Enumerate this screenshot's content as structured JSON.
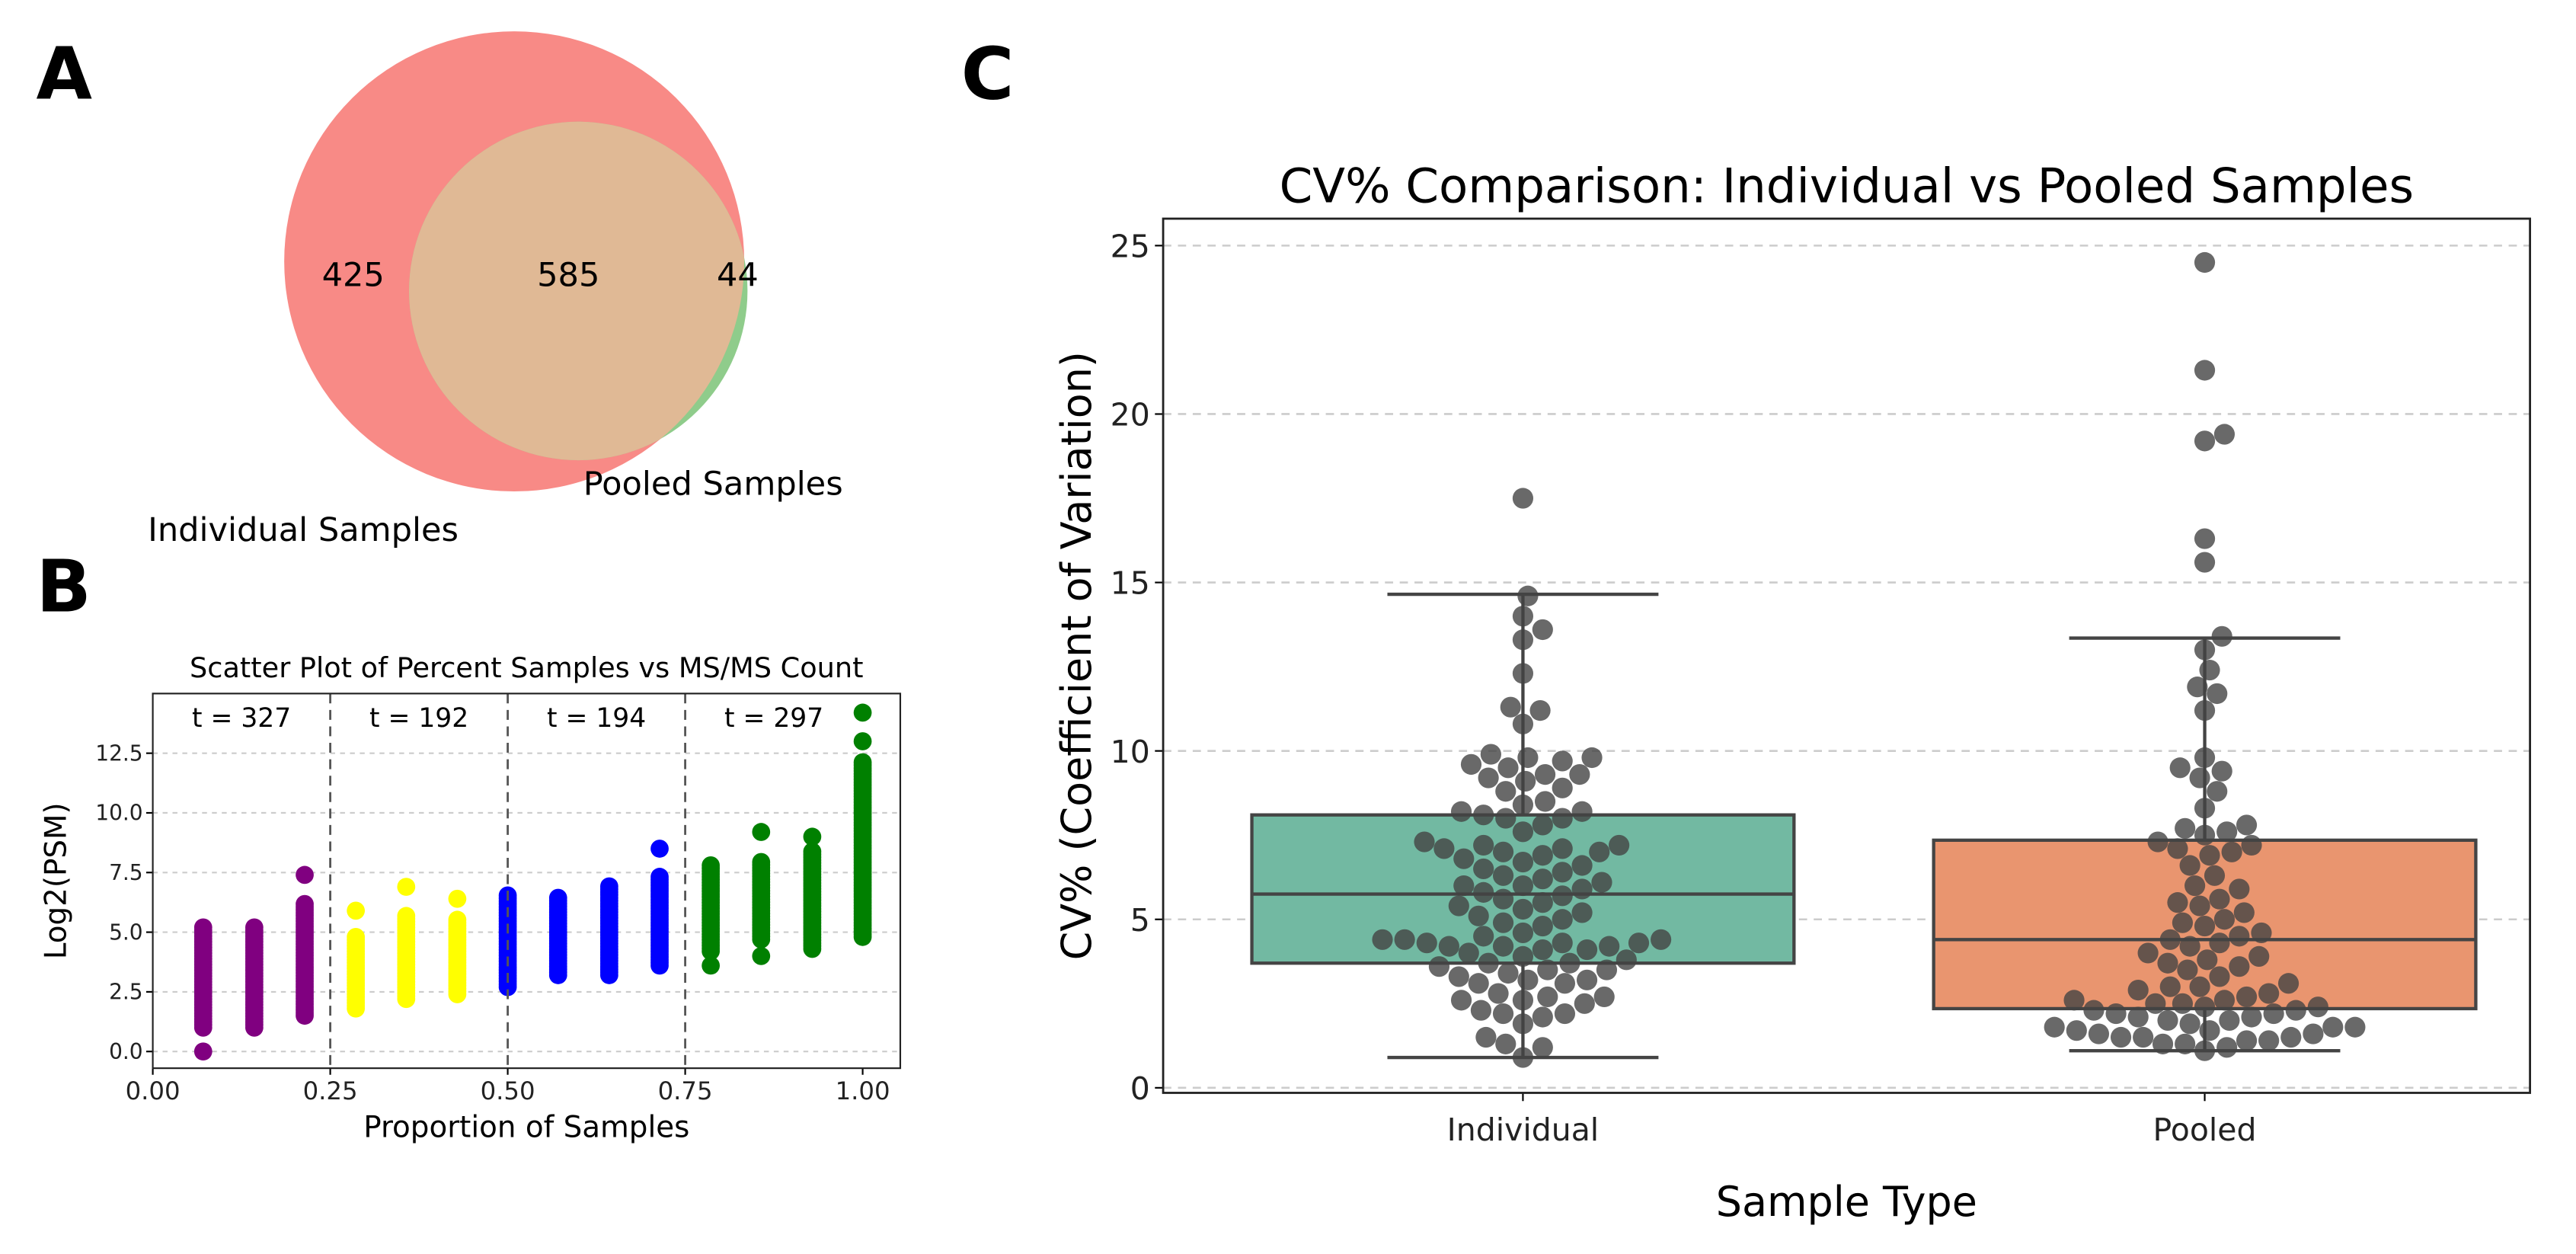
{
  "panels": {
    "a": "A",
    "b": "B",
    "c": "C"
  },
  "venn": {
    "sets": [
      {
        "name": "Individual Samples",
        "only": "425",
        "color": "#f88a86"
      },
      {
        "name": "Pooled Samples",
        "only": "44",
        "color": "#8fcc8b"
      }
    ],
    "intersection": "585",
    "intersection_color": "#e0b995"
  },
  "chart_data": [
    {
      "type": "scatter",
      "title": "Scatter Plot of Percent Samples vs MS/MS Count",
      "xlabel": "Proportion of Samples",
      "ylabel": "Log2(PSM)",
      "xlim": [
        0,
        1.053
      ],
      "ylim": [
        -0.7,
        15
      ],
      "xticks": [
        "0.00",
        "0.25",
        "0.50",
        "0.75",
        "1.00"
      ],
      "yticks": [
        "0.0",
        "2.5",
        "5.0",
        "7.5",
        "10.0",
        "12.5"
      ],
      "grid": "horizontal dashed",
      "dividers": [
        0.25,
        0.5,
        0.75
      ],
      "annotations": [
        "t = 327",
        "t = 192",
        "t = 194",
        "t = 297"
      ],
      "columns": [
        {
          "x": 0.071,
          "color": "#800080",
          "range": [
            1.0,
            5.3
          ],
          "extra": [
            0.0
          ]
        },
        {
          "x": 0.143,
          "color": "#800080",
          "range": [
            1.0,
            5.3
          ],
          "extra": []
        },
        {
          "x": 0.214,
          "color": "#800080",
          "range": [
            1.5,
            6.2
          ],
          "extra": [
            7.4
          ]
        },
        {
          "x": 0.286,
          "color": "#ffff00",
          "range": [
            1.8,
            4.8
          ],
          "extra": [
            5.9
          ]
        },
        {
          "x": 0.357,
          "color": "#ffff00",
          "range": [
            2.2,
            5.7
          ],
          "extra": [
            6.9
          ]
        },
        {
          "x": 0.429,
          "color": "#ffff00",
          "range": [
            2.4,
            5.6
          ],
          "extra": [
            6.4
          ]
        },
        {
          "x": 0.5,
          "color": "#0000ff",
          "range": [
            2.7,
            6.6
          ],
          "extra": []
        },
        {
          "x": 0.571,
          "color": "#0000ff",
          "range": [
            3.2,
            6.5
          ],
          "extra": []
        },
        {
          "x": 0.643,
          "color": "#0000ff",
          "range": [
            3.2,
            7.0
          ],
          "extra": []
        },
        {
          "x": 0.714,
          "color": "#0000ff",
          "range": [
            3.6,
            7.4
          ],
          "extra": [
            8.5
          ]
        },
        {
          "x": 0.786,
          "color": "#008000",
          "range": [
            4.2,
            7.8
          ],
          "extra": [
            3.6
          ]
        },
        {
          "x": 0.857,
          "color": "#008000",
          "range": [
            4.7,
            8.0
          ],
          "extra": [
            4.0,
            9.2
          ]
        },
        {
          "x": 0.929,
          "color": "#008000",
          "range": [
            4.3,
            8.4
          ],
          "extra": [
            9.0
          ]
        },
        {
          "x": 1.0,
          "color": "#008000",
          "range": [
            4.8,
            12.2
          ],
          "extra": [
            13.0,
            14.2
          ]
        }
      ]
    },
    {
      "type": "box",
      "title": "CV% Comparison: Individual vs Pooled Samples",
      "xlabel": "Sample Type",
      "ylabel": "CV% (Coefficient of Variation)",
      "ylim": [
        -0.15,
        25.8
      ],
      "yticks": [
        "0",
        "5",
        "10",
        "15",
        "20",
        "25"
      ],
      "grid": "horizontal dashed",
      "categories": [
        "Individual",
        "Pooled"
      ],
      "boxes": [
        {
          "name": "Individual",
          "color": "#72b9a2",
          "q1": 3.7,
          "median": 5.75,
          "q3": 8.1,
          "whisker_low": 0.9,
          "whisker_high": 14.65,
          "points": [
            0.9,
            1.2,
            1.3,
            1.5,
            1.9,
            2.1,
            2.2,
            2.2,
            2.3,
            2.5,
            2.6,
            2.6,
            2.7,
            2.7,
            2.8,
            3.1,
            3.1,
            3.2,
            3.2,
            3.3,
            3.4,
            3.5,
            3.5,
            3.6,
            3.7,
            3.7,
            3.8,
            3.9,
            4.0,
            4.1,
            4.1,
            4.2,
            4.2,
            4.2,
            4.3,
            4.3,
            4.3,
            4.4,
            4.4,
            4.4,
            4.5,
            4.6,
            4.8,
            4.9,
            5.0,
            5.1,
            5.2,
            5.3,
            5.4,
            5.5,
            5.6,
            5.7,
            5.8,
            5.9,
            6.0,
            6.0,
            6.1,
            6.2,
            6.3,
            6.4,
            6.5,
            6.6,
            6.7,
            6.8,
            6.9,
            7.0,
            7.0,
            7.1,
            7.1,
            7.2,
            7.2,
            7.3,
            7.6,
            7.8,
            8.0,
            8.0,
            8.1,
            8.2,
            8.2,
            8.4,
            8.5,
            8.8,
            8.9,
            9.1,
            9.2,
            9.3,
            9.3,
            9.5,
            9.6,
            9.7,
            9.8,
            9.8,
            9.9,
            10.8,
            11.2,
            11.3,
            12.3,
            13.3,
            13.6,
            14.0,
            14.6,
            17.5
          ]
        },
        {
          "name": "Pooled",
          "color": "#e9956f",
          "q1": 2.35,
          "median": 4.4,
          "q3": 7.35,
          "whisker_low": 1.1,
          "whisker_high": 13.35,
          "points": [
            1.1,
            1.2,
            1.3,
            1.3,
            1.4,
            1.4,
            1.5,
            1.5,
            1.5,
            1.6,
            1.6,
            1.7,
            1.7,
            1.8,
            1.8,
            1.8,
            1.9,
            2.0,
            2.0,
            2.1,
            2.1,
            2.2,
            2.2,
            2.3,
            2.3,
            2.4,
            2.4,
            2.5,
            2.5,
            2.6,
            2.6,
            2.7,
            2.8,
            2.9,
            3.0,
            3.0,
            3.1,
            3.3,
            3.5,
            3.6,
            3.7,
            3.8,
            3.9,
            4.0,
            4.2,
            4.3,
            4.4,
            4.5,
            4.6,
            4.8,
            4.9,
            5.0,
            5.2,
            5.4,
            5.5,
            5.6,
            5.9,
            6.0,
            6.3,
            6.6,
            6.9,
            7.0,
            7.1,
            7.2,
            7.3,
            7.5,
            7.6,
            7.7,
            7.8,
            8.3,
            8.8,
            9.2,
            9.4,
            9.5,
            9.8,
            11.2,
            11.7,
            11.9,
            12.4,
            13.0,
            13.4,
            15.6,
            16.3,
            19.2,
            19.4,
            21.3,
            24.5
          ]
        }
      ],
      "point_color": "#444444"
    }
  ]
}
